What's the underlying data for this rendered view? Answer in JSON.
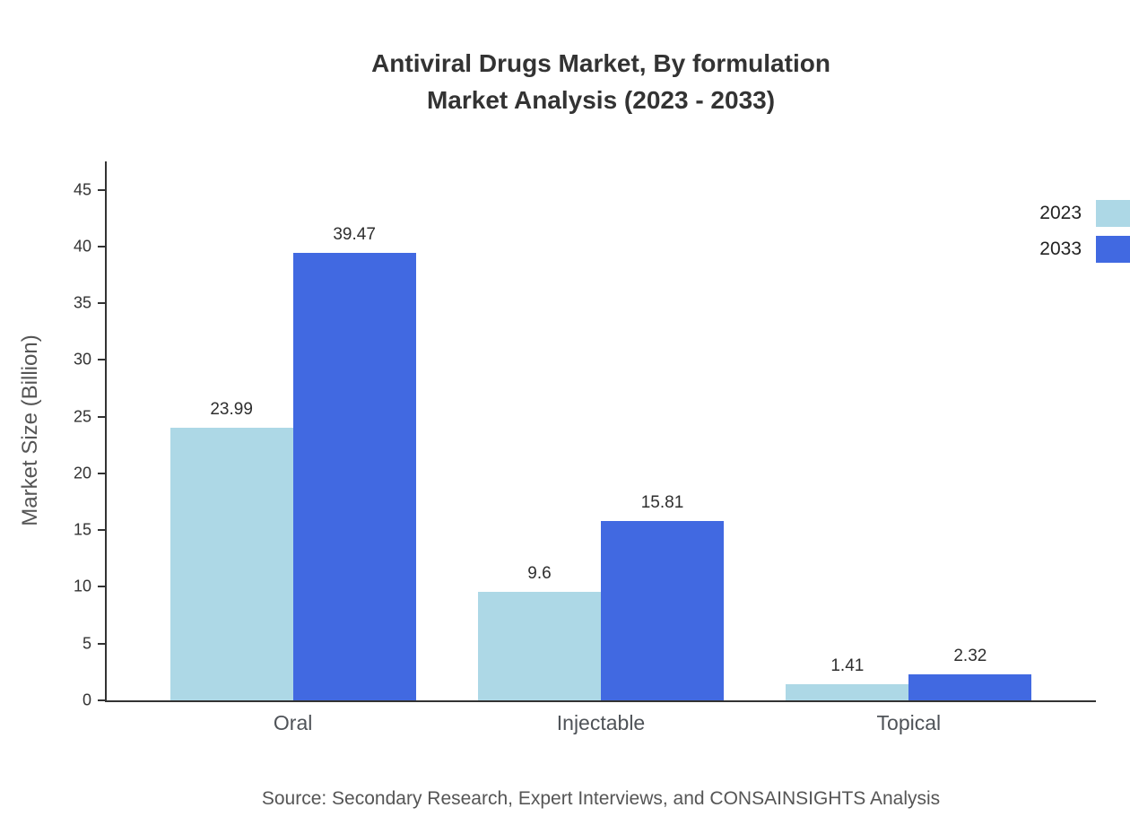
{
  "title": {
    "line1": "Antiviral Drugs Market, By formulation",
    "line2": "Market Analysis (2023 - 2033)"
  },
  "source": "Source: Secondary Research, Expert Interviews, and CONSAINSIGHTS Analysis",
  "chart_data": {
    "type": "bar",
    "title": "Antiviral Drugs Market, By formulation Market Analysis (2023 - 2033)",
    "xlabel": "",
    "ylabel": "Market Size (Billion)",
    "categories": [
      "Oral",
      "Injectable",
      "Topical"
    ],
    "series": [
      {
        "name": "2023",
        "color": "#add8e6",
        "values": [
          23.99,
          9.6,
          1.41
        ]
      },
      {
        "name": "2033",
        "color": "#4169e1",
        "values": [
          39.47,
          15.81,
          2.32
        ]
      }
    ],
    "yticks": [
      0,
      5,
      10,
      15,
      20,
      25,
      30,
      35,
      40,
      45
    ],
    "ylim": [
      0,
      47.5
    ],
    "grid": false,
    "legend_position": "right",
    "value_labels_shown": true
  }
}
